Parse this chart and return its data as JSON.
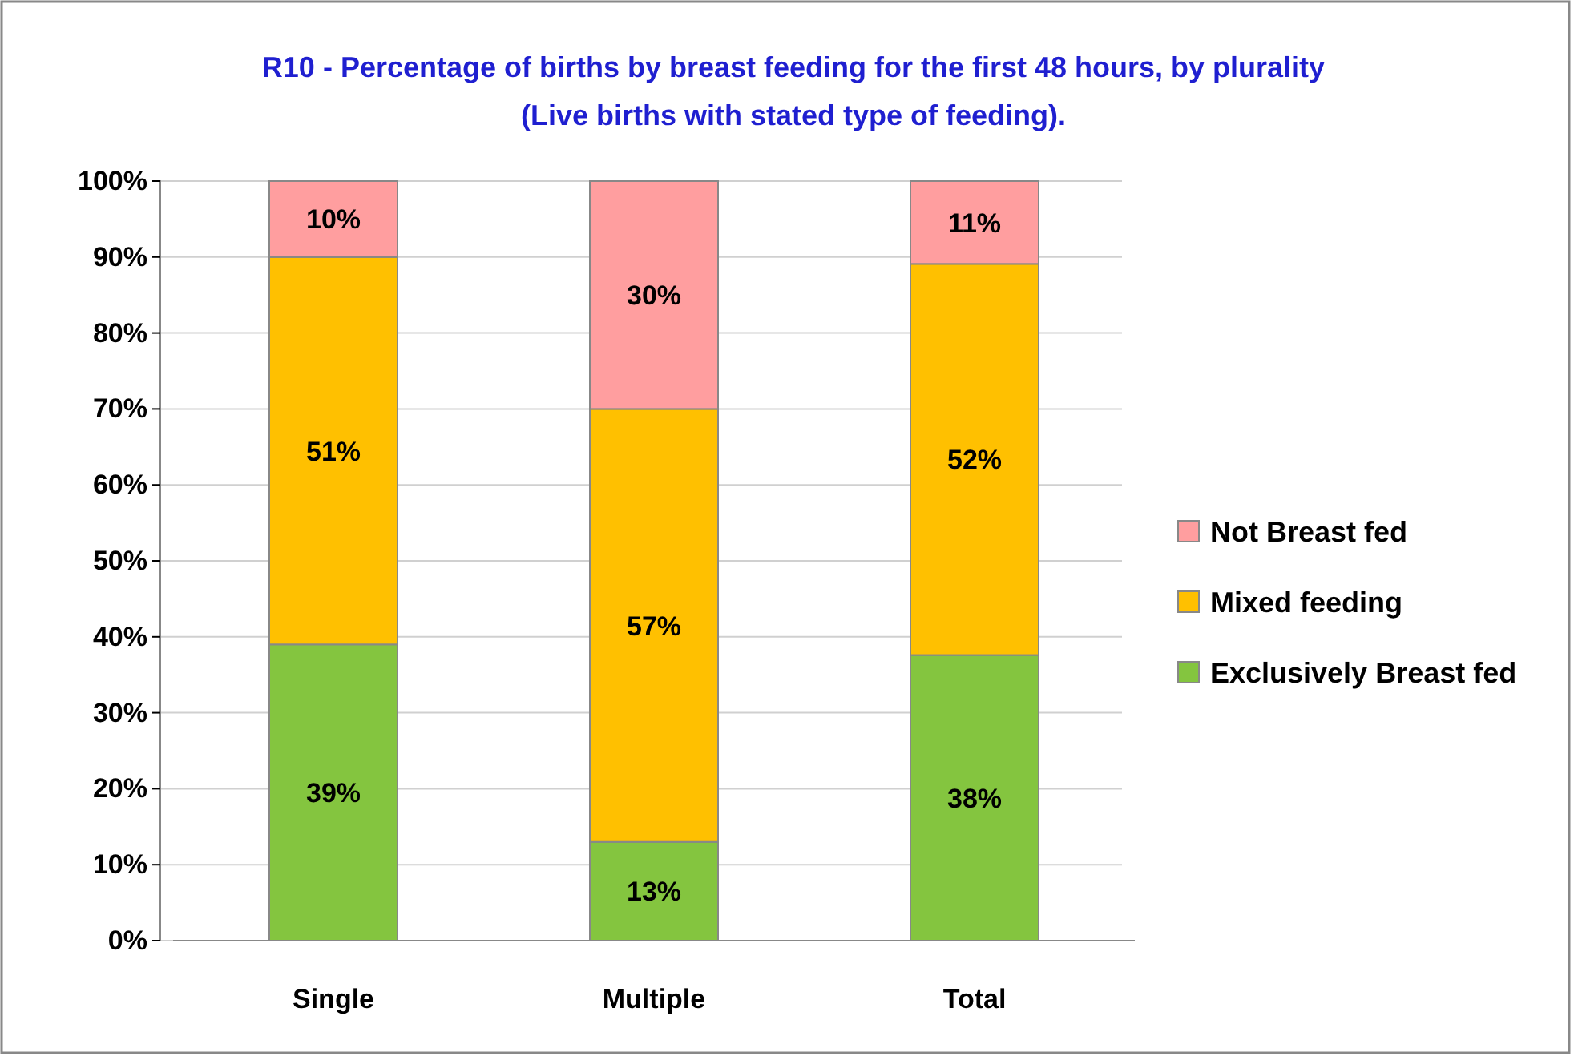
{
  "chart_data": {
    "type": "bar",
    "stacked": true,
    "title": "R10 - Percentage of births by breast feeding for the first 48 hours, by plurality",
    "subtitle": "(Live births with stated type of feeding).",
    "categories": [
      "Single",
      "Multiple",
      "Total"
    ],
    "series": [
      {
        "name": "Exclusively Breast fed",
        "color": "#84c53f",
        "values": [
          39,
          13,
          37.6
        ],
        "value_labels": [
          "39%",
          "13%",
          "38%"
        ]
      },
      {
        "name": "Mixed feeding",
        "color": "#ffc000",
        "values": [
          51,
          57,
          51.5
        ],
        "value_labels": [
          "51%",
          "57%",
          "52%"
        ]
      },
      {
        "name": "Not Breast fed",
        "color": "#ff9e9f",
        "values": [
          10,
          30,
          10.9
        ],
        "value_labels": [
          "10%",
          "30%",
          "11%"
        ]
      }
    ],
    "ylim": [
      0,
      100
    ],
    "yticks": [
      {
        "value": 0,
        "label": "0%"
      },
      {
        "value": 10,
        "label": "10%"
      },
      {
        "value": 20,
        "label": "20%"
      },
      {
        "value": 30,
        "label": "30%"
      },
      {
        "value": 40,
        "label": "40%"
      },
      {
        "value": 50,
        "label": "50%"
      },
      {
        "value": 60,
        "label": "60%"
      },
      {
        "value": 70,
        "label": "70%"
      },
      {
        "value": 80,
        "label": "80%"
      },
      {
        "value": 90,
        "label": "90%"
      },
      {
        "value": 100,
        "label": "100%"
      }
    ],
    "grid": "y",
    "legend": "right"
  }
}
